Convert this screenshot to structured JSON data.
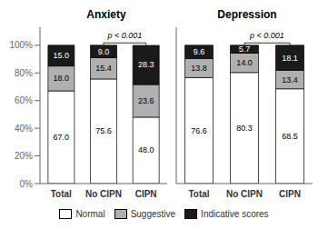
{
  "chart_data": [
    {
      "type": "bar",
      "title": "Anxiety",
      "categories": [
        "Total",
        "No CIPN",
        "CIPN"
      ],
      "series": [
        {
          "name": "Normal",
          "color": "#ffffff",
          "values": [
            67.0,
            75.6,
            48.0
          ],
          "value_labels": [
            "67.0",
            "75.6",
            "48.0"
          ]
        },
        {
          "name": "Suggestive",
          "color": "#b0b0b0",
          "values": [
            18.0,
            15.4,
            23.6
          ],
          "value_labels": [
            "18.0",
            "15.4",
            "23.6"
          ]
        },
        {
          "name": "Indicative scores",
          "color": "#1a1a1a",
          "values": [
            15.0,
            9.0,
            28.3
          ],
          "value_labels": [
            "15.0",
            "9.0",
            "28.3"
          ]
        }
      ],
      "ylim": [
        0,
        113
      ],
      "yticks": [
        {
          "value": 0,
          "label": "0%"
        },
        {
          "value": 20,
          "label": "20%"
        },
        {
          "value": 40,
          "label": "40%"
        },
        {
          "value": 60,
          "label": "60%"
        },
        {
          "value": 80,
          "label": "80%"
        },
        {
          "value": 100,
          "label": "100%"
        }
      ],
      "stacked": true,
      "data_labels": true,
      "annotations": [
        {
          "text": "p < 0.001",
          "from": "No CIPN",
          "to": "CIPN"
        }
      ],
      "legend": "lower center"
    },
    {
      "type": "bar",
      "title": "Depression",
      "categories": [
        "Total",
        "No CIPN",
        "CIPN"
      ],
      "series": [
        {
          "name": "Normal",
          "color": "#ffffff",
          "values": [
            76.6,
            80.3,
            68.5
          ],
          "value_labels": [
            "76.6",
            "80.3",
            "68.5"
          ]
        },
        {
          "name": "Suggestive",
          "color": "#b0b0b0",
          "values": [
            13.8,
            14.0,
            13.4
          ],
          "value_labels": [
            "13.8",
            "14.0",
            "13.4"
          ]
        },
        {
          "name": "Indicative scores",
          "color": "#1a1a1a",
          "values": [
            9.6,
            5.7,
            18.1
          ],
          "value_labels": [
            "9.6",
            "5.7",
            "18.1"
          ]
        }
      ],
      "ylim": [
        0,
        113
      ],
      "yticks": [
        {
          "value": 0,
          "label": "0%"
        },
        {
          "value": 20,
          "label": "20%"
        },
        {
          "value": 40,
          "label": "40%"
        },
        {
          "value": 60,
          "label": "60%"
        },
        {
          "value": 80,
          "label": "80%"
        },
        {
          "value": 100,
          "label": "100%"
        }
      ],
      "stacked": true,
      "data_labels": true,
      "annotations": [
        {
          "text": "p < 0.001",
          "from": "No CIPN",
          "to": "CIPN"
        }
      ],
      "tick_labels": "x"
    }
  ]
}
